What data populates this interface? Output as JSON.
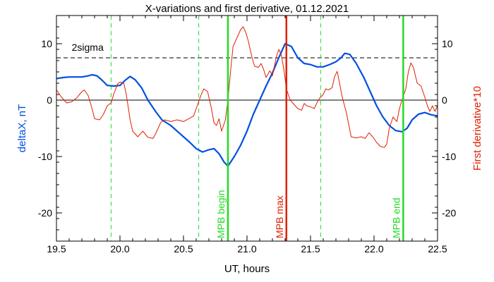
{
  "chart_data": {
    "type": "line",
    "title": "X-variations and first derivative, 01.12.2021",
    "xlabel": "UT, hours",
    "ylabel_left": "deltaX, nT",
    "ylabel_right": "First derivative*10",
    "xlim": [
      19.5,
      22.5
    ],
    "ylim": [
      -25,
      15
    ],
    "x_ticks": [
      "19.5",
      "20.0",
      "20.5",
      "21.0",
      "21.5",
      "22.0",
      "22.5"
    ],
    "y_ticks": [
      "10",
      "0",
      "-10",
      "-20"
    ],
    "grid": false,
    "colors": {
      "deltaX": "#0050e0",
      "derivative": "#e02000",
      "mpb_marker": "#22dd22",
      "mpb_max": "#dd2200",
      "sigma_line": "#000000"
    },
    "series": [
      {
        "id": "deltaX",
        "color": "#0050e0",
        "points": [
          [
            19.5,
            3.8
          ],
          [
            19.55,
            4.0
          ],
          [
            19.6,
            4.1
          ],
          [
            19.7,
            4.1
          ],
          [
            19.75,
            4.3
          ],
          [
            19.78,
            4.5
          ],
          [
            19.82,
            4.3
          ],
          [
            19.86,
            3.5
          ],
          [
            19.9,
            2.6
          ],
          [
            19.95,
            2.5
          ],
          [
            20.0,
            2.6
          ],
          [
            20.04,
            3.5
          ],
          [
            20.08,
            4.2
          ],
          [
            20.12,
            3.6
          ],
          [
            20.17,
            2.2
          ],
          [
            20.22,
            0.0
          ],
          [
            20.28,
            -2.0
          ],
          [
            20.33,
            -3.5
          ],
          [
            20.4,
            -4.5
          ],
          [
            20.45,
            -5.5
          ],
          [
            20.5,
            -6.5
          ],
          [
            20.55,
            -7.5
          ],
          [
            20.6,
            -8.6
          ],
          [
            20.65,
            -9.2
          ],
          [
            20.7,
            -8.8
          ],
          [
            20.74,
            -8.6
          ],
          [
            20.78,
            -9.5
          ],
          [
            20.82,
            -11.0
          ],
          [
            20.85,
            -11.7
          ],
          [
            20.9,
            -10.0
          ],
          [
            20.95,
            -8.0
          ],
          [
            21.0,
            -5.5
          ],
          [
            21.05,
            -2.5
          ],
          [
            21.1,
            0.0
          ],
          [
            21.15,
            2.5
          ],
          [
            21.2,
            4.8
          ],
          [
            21.25,
            7.5
          ],
          [
            21.3,
            10.0
          ],
          [
            21.35,
            9.5
          ],
          [
            21.4,
            7.5
          ],
          [
            21.45,
            6.5
          ],
          [
            21.5,
            6.3
          ],
          [
            21.55,
            5.9
          ],
          [
            21.6,
            5.9
          ],
          [
            21.65,
            6.3
          ],
          [
            21.7,
            6.8
          ],
          [
            21.74,
            7.5
          ],
          [
            21.77,
            8.3
          ],
          [
            21.81,
            8.1
          ],
          [
            21.86,
            6.5
          ],
          [
            21.92,
            4.0
          ],
          [
            21.97,
            1.5
          ],
          [
            22.02,
            -1.0
          ],
          [
            22.07,
            -3.0
          ],
          [
            22.12,
            -4.5
          ],
          [
            22.17,
            -5.4
          ],
          [
            22.22,
            -5.6
          ],
          [
            22.26,
            -5.0
          ],
          [
            22.3,
            -3.5
          ],
          [
            22.35,
            -2.5
          ],
          [
            22.4,
            -2.2
          ],
          [
            22.45,
            -2.6
          ],
          [
            22.5,
            -2.8
          ]
        ]
      },
      {
        "id": "derivative",
        "color": "#e02000",
        "points": [
          [
            19.5,
            1.8
          ],
          [
            19.54,
            0.5
          ],
          [
            19.58,
            -0.5
          ],
          [
            19.62,
            -0.3
          ],
          [
            19.66,
            0.4
          ],
          [
            19.7,
            1.5
          ],
          [
            19.72,
            1.8
          ],
          [
            19.75,
            0.8
          ],
          [
            19.78,
            -1.5
          ],
          [
            19.8,
            -3.3
          ],
          [
            19.84,
            -3.5
          ],
          [
            19.87,
            -2.5
          ],
          [
            19.9,
            -1.0
          ],
          [
            19.93,
            -0.5
          ],
          [
            19.95,
            1.0
          ],
          [
            19.98,
            2.8
          ],
          [
            20.0,
            3.2
          ],
          [
            20.03,
            3.0
          ],
          [
            20.05,
            1.0
          ],
          [
            20.08,
            -3.5
          ],
          [
            20.1,
            -5.5
          ],
          [
            20.14,
            -6.5
          ],
          [
            20.18,
            -5.5
          ],
          [
            20.22,
            -6.6
          ],
          [
            20.26,
            -6.8
          ],
          [
            20.28,
            -6.0
          ],
          [
            20.32,
            -4.0
          ],
          [
            20.35,
            -3.5
          ],
          [
            20.4,
            -3.8
          ],
          [
            20.45,
            -3.5
          ],
          [
            20.5,
            -3.8
          ],
          [
            20.55,
            -3.2
          ],
          [
            20.58,
            -2.8
          ],
          [
            20.6,
            -1.5
          ],
          [
            20.64,
            1.0
          ],
          [
            20.66,
            2.0
          ],
          [
            20.69,
            1.5
          ],
          [
            20.72,
            -1.5
          ],
          [
            20.74,
            -4.0
          ],
          [
            20.76,
            -4.5
          ],
          [
            20.78,
            -3.3
          ],
          [
            20.8,
            -5.5
          ],
          [
            20.83,
            -3.5
          ],
          [
            20.85,
            0.0
          ],
          [
            20.87,
            5.0
          ],
          [
            20.89,
            9.5
          ],
          [
            20.92,
            11.0
          ],
          [
            20.95,
            12.5
          ],
          [
            20.97,
            13.0
          ],
          [
            20.99,
            12.0
          ],
          [
            21.01,
            10.5
          ],
          [
            21.04,
            7.5
          ],
          [
            21.06,
            6.0
          ],
          [
            21.09,
            5.8
          ],
          [
            21.11,
            6.5
          ],
          [
            21.13,
            5.5
          ],
          [
            21.15,
            4.0
          ],
          [
            21.18,
            5.2
          ],
          [
            21.2,
            4.3
          ],
          [
            21.23,
            7.6
          ],
          [
            21.25,
            9.0
          ],
          [
            21.27,
            8.0
          ],
          [
            21.29,
            5.5
          ],
          [
            21.31,
            2.0
          ],
          [
            21.34,
            0.0
          ],
          [
            21.36,
            -0.5
          ],
          [
            21.4,
            -1.5
          ],
          [
            21.43,
            -1.8
          ],
          [
            21.45,
            -0.6
          ],
          [
            21.47,
            -1.0
          ],
          [
            21.5,
            -1.2
          ],
          [
            21.53,
            -1.5
          ],
          [
            21.55,
            -0.5
          ],
          [
            21.57,
            0.3
          ],
          [
            21.6,
            1.0
          ],
          [
            21.62,
            2.0
          ],
          [
            21.64,
            1.8
          ],
          [
            21.67,
            2.2
          ],
          [
            21.69,
            4.2
          ],
          [
            21.71,
            5.1
          ],
          [
            21.72,
            4.0
          ],
          [
            21.75,
            0.5
          ],
          [
            21.78,
            -2.0
          ],
          [
            21.82,
            -6.5
          ],
          [
            21.86,
            -6.7
          ],
          [
            21.9,
            -6.5
          ],
          [
            21.93,
            -6.8
          ],
          [
            21.96,
            -5.8
          ],
          [
            21.99,
            -6.5
          ],
          [
            22.02,
            -7.5
          ],
          [
            22.05,
            -8.2
          ],
          [
            22.08,
            -8.4
          ],
          [
            22.1,
            -7.8
          ],
          [
            22.12,
            -5.0
          ],
          [
            22.15,
            -3.0
          ],
          [
            22.18,
            -3.8
          ],
          [
            22.2,
            -1.5
          ],
          [
            22.22,
            0.0
          ],
          [
            22.25,
            2.0
          ],
          [
            22.27,
            5.0
          ],
          [
            22.29,
            6.6
          ],
          [
            22.31,
            5.8
          ],
          [
            22.34,
            3.0
          ],
          [
            22.37,
            2.5
          ],
          [
            22.4,
            0.5
          ],
          [
            22.42,
            -1.0
          ],
          [
            22.44,
            -2.0
          ],
          [
            22.46,
            -1.0
          ],
          [
            22.48,
            -2.0
          ],
          [
            22.5,
            -1.0
          ]
        ]
      }
    ],
    "sigma": {
      "label": "2sigma",
      "value": 7.5
    },
    "zero_line": 0,
    "dashed_green_lines": [
      19.93,
      20.62,
      21.58
    ],
    "markers": [
      {
        "label": "MPB begin",
        "x": 20.85,
        "color": "#22dd22"
      },
      {
        "label": "MPB max",
        "x": 21.31,
        "color": "#dd2200"
      },
      {
        "label": "MPB end",
        "x": 22.23,
        "color": "#22dd22"
      }
    ]
  }
}
